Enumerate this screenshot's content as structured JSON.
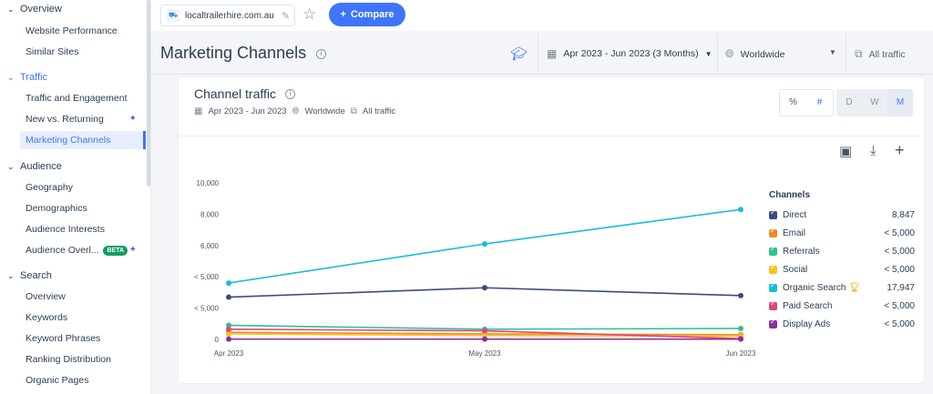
{
  "sidebar": {
    "groups": [
      {
        "label": "Overview"
      },
      {
        "label": "Traffic"
      },
      {
        "label": "Audience"
      },
      {
        "label": "Search"
      }
    ],
    "items": [
      {
        "label": "Website Performance"
      },
      {
        "label": "Similar Sites"
      },
      {
        "label": "Traffic and Engagement"
      },
      {
        "label": "New vs. Returning"
      },
      {
        "label": "Marketing Channels"
      },
      {
        "label": "Geography"
      },
      {
        "label": "Demographics"
      },
      {
        "label": "Audience Interests"
      },
      {
        "label": "Audience Overl..."
      },
      {
        "label": "Overview"
      },
      {
        "label": "Keywords"
      },
      {
        "label": "Keyword Phrases"
      },
      {
        "label": "Ranking Distribution"
      },
      {
        "label": "Organic Pages"
      }
    ],
    "beta_badge": "BETA"
  },
  "topbar": {
    "site": "localtrailerhire.com.au",
    "compare_label": "Compare"
  },
  "header": {
    "title": "Marketing Channels",
    "date_range": "Apr 2023 - Jun 2023 (3 Months)",
    "region": "Worldwide",
    "traffic_type": "All traffic"
  },
  "card": {
    "title": "Channel traffic",
    "sub_date": "Apr 2023 - Jun 2023",
    "sub_region": "Worldwide",
    "sub_traffic": "All traffic",
    "toggle_percent": "%",
    "toggle_number": "#",
    "granularity": [
      "D",
      "W",
      "M"
    ],
    "selected_toggle": "#",
    "selected_granularity": "M"
  },
  "chart_data": {
    "type": "line",
    "x": [
      "Apr 2023",
      "May 2023",
      "Jun 2023"
    ],
    "y_tick_labels": [
      "0",
      "< 5,000",
      "< 5,000",
      "6,000",
      "8,000",
      "10,000"
    ],
    "ylim": [
      0,
      10000
    ],
    "grid": false,
    "legend_title": "Channels",
    "legend_position": "right",
    "series": [
      {
        "name": "Direct",
        "color": "#3b4b7e",
        "values": [
          2700,
          3300,
          2800
        ],
        "total": "8,847"
      },
      {
        "name": "Email",
        "color": "#f08a24",
        "values": [
          450,
          350,
          300
        ],
        "total": "< 5,000"
      },
      {
        "name": "Referrals",
        "color": "#2bc48a",
        "values": [
          900,
          650,
          700
        ],
        "total": "< 5,000"
      },
      {
        "name": "Social",
        "color": "#f5c419",
        "values": [
          350,
          250,
          200
        ],
        "total": "< 5,000"
      },
      {
        "name": "Organic Search",
        "color": "#17bcdc",
        "values": [
          3600,
          6100,
          8300
        ],
        "total": "17,947",
        "icon": "trophy-icon"
      },
      {
        "name": "Paid Search",
        "color": "#e0457b",
        "values": [
          650,
          550,
          50
        ],
        "total": "< 5,000"
      },
      {
        "name": "Display Ads",
        "color": "#8e2ea3",
        "values": [
          20,
          20,
          20
        ],
        "total": "< 5,000"
      }
    ]
  }
}
